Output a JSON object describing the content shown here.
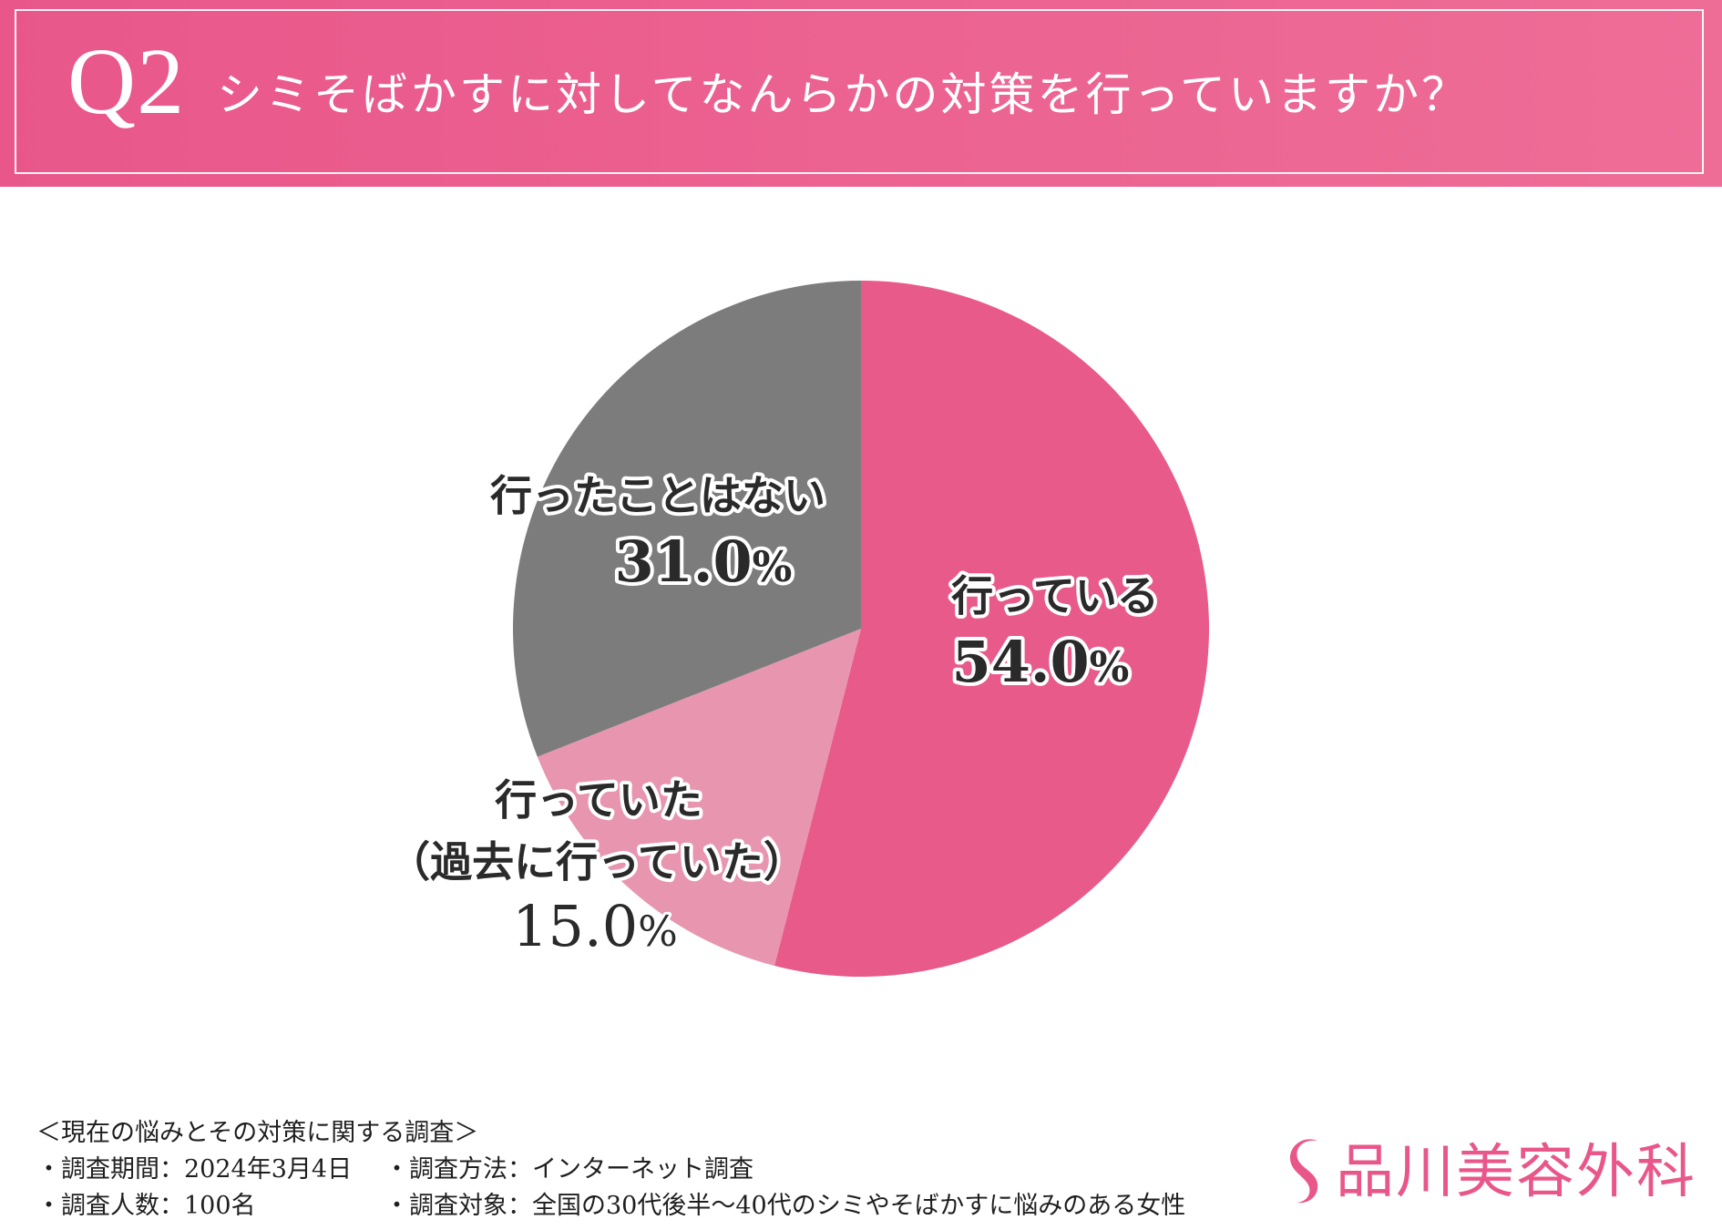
{
  "header": {
    "question_number": "Q2",
    "question_text": "シミそばかすに対してなんらかの対策を行っていますか？"
  },
  "chart_data": {
    "type": "pie",
    "title": "シミそばかすに対してなんらかの対策を行っていますか？",
    "categories": [
      "行っている",
      "行っていた（過去に行っていた）",
      "行ったことはない"
    ],
    "values": [
      54.0,
      15.0,
      31.0
    ],
    "value_labels": [
      "54.0%",
      "15.0%",
      "31.0%"
    ],
    "slices": [
      {
        "label": "行っている",
        "value": 54.0,
        "value_text": "54.0",
        "percent_sign": "%",
        "color": "#e85a89"
      },
      {
        "label_line_1": "行っていた",
        "label_line_2": "（過去に行っていた）",
        "value": 15.0,
        "value_text": "15.0",
        "percent_sign": "%",
        "color": "#e895b0"
      },
      {
        "label": "行ったことはない",
        "value": 31.0,
        "value_text": "31.0",
        "percent_sign": "%",
        "color": "#7c7c7c"
      }
    ],
    "start_angle_degrees": 0,
    "direction": "clockwise",
    "legend": "none"
  },
  "footer": {
    "survey_title": "＜現在の悩みとその対策に関する調査＞",
    "period": "・調査期間：2024年3月4日",
    "method": "・調査方法：インターネット調査",
    "respondents": "・調査人数：100名",
    "target": "・調査対象：全国の30代後半〜40代のシミやそばかすに悩みのある女性"
  },
  "brand": {
    "name": "品川美容外科",
    "icon": "brand-s-mark-icon",
    "color": "#e9578a"
  }
}
